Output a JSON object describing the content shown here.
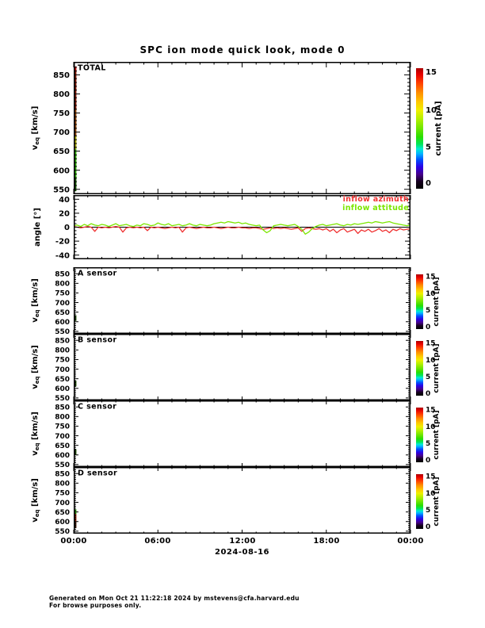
{
  "title": "SPC ion mode quick look, mode 0",
  "x_axis": {
    "labels": [
      "00:00",
      "06:00",
      "12:00",
      "18:00",
      "00:00"
    ],
    "date": "2024-08-16",
    "hours": 24,
    "major_step_hours": 6,
    "minor_step_hours": 1
  },
  "legend": {
    "items": [
      {
        "label": "inflow azimuth",
        "color": "#f03232"
      },
      {
        "label": "inflow attitude",
        "color": "#7ce600"
      }
    ]
  },
  "footer": {
    "line1": "Generated on Mon Oct 21 11:22:18 2024 by mstevens@cfa.harvard.edu",
    "line2": "For browse purposes only."
  },
  "colorbar": {
    "label": "current [pA]",
    "range": [
      0,
      15
    ],
    "ticks": [
      [
        0.05,
        "0"
      ],
      [
        0.35,
        "5"
      ],
      [
        0.655,
        "10"
      ],
      [
        0.97,
        "15"
      ]
    ],
    "gradient": [
      [
        0.0,
        "#000000"
      ],
      [
        0.06,
        "#16001e"
      ],
      [
        0.12,
        "#46008c"
      ],
      [
        0.18,
        "#2a00e6"
      ],
      [
        0.24,
        "#0050ff"
      ],
      [
        0.29,
        "#00b4ff"
      ],
      [
        0.33,
        "#00ecd2"
      ],
      [
        0.37,
        "#00e65a"
      ],
      [
        0.43,
        "#2ade00"
      ],
      [
        0.5,
        "#6ee600"
      ],
      [
        0.58,
        "#b4f000"
      ],
      [
        0.65,
        "#f0f000"
      ],
      [
        0.72,
        "#ffc800"
      ],
      [
        0.8,
        "#ff8c00"
      ],
      [
        0.88,
        "#ff3c00"
      ],
      [
        0.95,
        "#e60000"
      ],
      [
        1.0,
        "#aa0000"
      ]
    ]
  },
  "chart_data": [
    {
      "id": "total",
      "type": "heatmap",
      "title": "TOTAL",
      "ylabel": {
        "main": "v",
        "sub": "eq",
        "unit": " [km/s]"
      },
      "ylim": [
        537,
        884
      ],
      "yticks": [
        550,
        600,
        650,
        700,
        750,
        800,
        850
      ],
      "ymajor": 50,
      "yminor": 10,
      "grid": false,
      "has_colorbar": true,
      "size": "big",
      "edge_column_segments": [
        [
          860,
          872,
          "#b40000"
        ],
        [
          760,
          860,
          "#781400"
        ],
        [
          690,
          760,
          "#823c00"
        ],
        [
          655,
          690,
          "#a0a000"
        ],
        [
          580,
          655,
          "#28a000"
        ],
        [
          545,
          580,
          "#145000"
        ]
      ]
    },
    {
      "id": "angle",
      "type": "line",
      "ylabel": {
        "plain": "angle [°]"
      },
      "ylim": [
        -46,
        46
      ],
      "yticks": [
        -40,
        -20,
        0,
        20,
        40
      ],
      "ymajor": 20,
      "yminor": 5,
      "grid": false,
      "has_colorbar": false,
      "size": "mid",
      "zero_line": 0,
      "series": [
        {
          "name": "inflow azimuth",
          "color": "#f03232",
          "x0": 0,
          "dx": 0.25,
          "y": [
            1,
            0,
            -1,
            0,
            1,
            0,
            -6,
            0,
            -1,
            0,
            -1,
            0,
            1,
            0,
            -7,
            -1,
            0,
            -1,
            0,
            -1,
            0,
            -5,
            0,
            -1,
            0,
            -1,
            -2,
            -1,
            0,
            -1,
            0,
            -7,
            -1,
            0,
            -1,
            -2,
            -1,
            0,
            -1,
            -1,
            0,
            -1,
            -2,
            -1,
            0,
            -1,
            -1,
            0,
            -1,
            -1,
            -2,
            -1,
            -1,
            -2,
            -3,
            -2,
            -1,
            -2,
            -1,
            -2,
            -1,
            -2,
            -3,
            -2,
            -1,
            -6,
            -2,
            -1,
            -2,
            -3,
            -2,
            -4,
            -2,
            -6,
            -3,
            -8,
            -4,
            -2,
            -7,
            -5,
            -3,
            -9,
            -4,
            -6,
            -3,
            -7,
            -5,
            -2,
            -6,
            -4,
            -8,
            -3,
            -5,
            -2,
            -4,
            -3,
            -2
          ]
        },
        {
          "name": "inflow attitude",
          "color": "#7ce600",
          "x0": 0,
          "dx": 0.25,
          "y": [
            2,
            3,
            1,
            4,
            2,
            5,
            3,
            2,
            4,
            3,
            1,
            3,
            5,
            2,
            3,
            4,
            2,
            1,
            3,
            2,
            5,
            4,
            2,
            3,
            6,
            4,
            3,
            5,
            2,
            3,
            4,
            2,
            3,
            5,
            3,
            2,
            4,
            3,
            2,
            3,
            5,
            6,
            7,
            6,
            8,
            7,
            6,
            7,
            5,
            6,
            4,
            3,
            2,
            3,
            -4,
            -8,
            -5,
            2,
            3,
            4,
            3,
            2,
            3,
            4,
            1,
            -3,
            -10,
            -7,
            -2,
            1,
            3,
            4,
            2,
            3,
            4,
            5,
            3,
            2,
            4,
            3,
            5,
            4,
            5,
            6,
            7,
            6,
            8,
            7,
            6,
            7,
            8,
            6,
            5,
            4,
            3,
            2,
            3
          ]
        }
      ]
    },
    {
      "id": "a",
      "type": "heatmap",
      "title": "A sensor",
      "ylabel": {
        "main": "v",
        "sub": "eq",
        "unit": " [km/s]"
      },
      "ylim": [
        537,
        884
      ],
      "yticks": [
        550,
        600,
        650,
        700,
        750,
        800,
        850
      ],
      "ymajor": 50,
      "yminor": 10,
      "grid": false,
      "has_colorbar": true,
      "size": "small",
      "edge_column_segments": [
        [
          604,
          634,
          "#1e4d00"
        ]
      ]
    },
    {
      "id": "b",
      "type": "heatmap",
      "title": "B sensor",
      "ylabel": {
        "main": "v",
        "sub": "eq",
        "unit": " [km/s]"
      },
      "ylim": [
        537,
        884
      ],
      "yticks": [
        550,
        600,
        650,
        700,
        750,
        800,
        850
      ],
      "ymajor": 50,
      "yminor": 10,
      "grid": false,
      "has_colorbar": true,
      "size": "small",
      "edge_column_segments": [
        [
          610,
          640,
          "#1e4d00"
        ]
      ]
    },
    {
      "id": "c",
      "type": "heatmap",
      "title": "C sensor",
      "ylabel": {
        "main": "v",
        "sub": "eq",
        "unit": " [km/s]"
      },
      "ylim": [
        537,
        884
      ],
      "yticks": [
        550,
        600,
        650,
        700,
        750,
        800,
        850
      ],
      "ymajor": 50,
      "yminor": 10,
      "grid": false,
      "has_colorbar": true,
      "size": "small",
      "edge_column_segments": [
        [
          600,
          630,
          "#1e4d00"
        ]
      ]
    },
    {
      "id": "d",
      "type": "heatmap",
      "title": "D sensor",
      "ylabel": {
        "main": "v",
        "sub": "eq",
        "unit": " [km/s]"
      },
      "ylim": [
        537,
        884
      ],
      "yticks": [
        550,
        600,
        650,
        700,
        750,
        800,
        850
      ],
      "ymajor": 50,
      "yminor": 10,
      "grid": false,
      "has_colorbar": true,
      "size": "small",
      "edge_column_segments": [
        [
          638,
          664,
          "#2daa00"
        ],
        [
          600,
          638,
          "#8c1e00"
        ],
        [
          566,
          600,
          "#3c1400"
        ]
      ]
    }
  ]
}
